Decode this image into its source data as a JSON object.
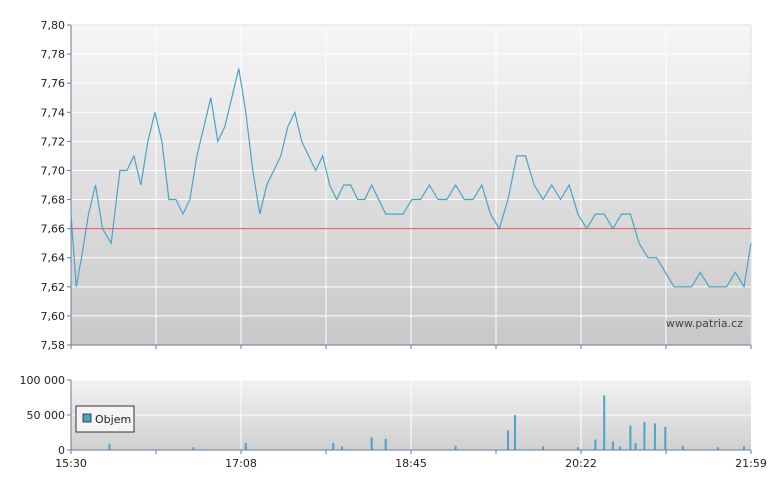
{
  "watermark": "www.patria.cz",
  "chart_data": [
    {
      "type": "line",
      "title": "",
      "xlabel": "",
      "ylabel": "",
      "x_tick_labels": [
        "15:30",
        "17:08",
        "18:45",
        "20:22",
        "21:59"
      ],
      "x_range": [
        "15:30",
        "21:59"
      ],
      "ylim": [
        7.58,
        7.8
      ],
      "y_ticks": [
        "7,58",
        "7,60",
        "7,62",
        "7,64",
        "7,66",
        "7,68",
        "7,70",
        "7,72",
        "7,74",
        "7,76",
        "7,78",
        "7,80"
      ],
      "grid": true,
      "reference_line": 7.66,
      "colors": {
        "line": "#4aa3c8",
        "reference": "#e05050"
      },
      "series": [
        {
          "x": [
            "15:30",
            "15:33",
            "15:36",
            "15:40",
            "15:44",
            "15:48",
            "15:53",
            "15:58",
            "16:02",
            "16:06",
            "16:10",
            "16:14",
            "16:18",
            "16:22",
            "16:26",
            "16:30",
            "16:34",
            "16:38",
            "16:42",
            "16:46",
            "16:50",
            "16:54",
            "16:58",
            "17:02",
            "17:06",
            "17:10",
            "17:14",
            "17:18",
            "17:22",
            "17:26",
            "17:30",
            "17:34",
            "17:38",
            "17:42",
            "17:46",
            "17:50",
            "17:54",
            "17:58",
            "18:02",
            "18:06",
            "18:10",
            "18:14",
            "18:18",
            "18:22",
            "18:26",
            "18:30",
            "18:35",
            "18:40",
            "18:45",
            "18:50",
            "18:55",
            "19:00",
            "19:05",
            "19:10",
            "19:15",
            "19:20",
            "19:25",
            "19:30",
            "19:35",
            "19:40",
            "19:45",
            "19:50",
            "19:55",
            "20:00",
            "20:05",
            "20:10",
            "20:15",
            "20:20",
            "20:25",
            "20:30",
            "20:35",
            "20:40",
            "20:45",
            "20:50",
            "20:55",
            "21:00",
            "21:05",
            "21:10",
            "21:15",
            "21:20",
            "21:25",
            "21:30",
            "21:35",
            "21:40",
            "21:45",
            "21:50",
            "21:55",
            "21:59"
          ],
          "values": [
            7.67,
            7.62,
            7.64,
            7.67,
            7.69,
            7.66,
            7.65,
            7.7,
            7.7,
            7.71,
            7.69,
            7.72,
            7.74,
            7.72,
            7.68,
            7.68,
            7.67,
            7.68,
            7.71,
            7.73,
            7.75,
            7.72,
            7.73,
            7.75,
            7.77,
            7.74,
            7.7,
            7.67,
            7.69,
            7.7,
            7.71,
            7.73,
            7.74,
            7.72,
            7.71,
            7.7,
            7.71,
            7.69,
            7.68,
            7.69,
            7.69,
            7.68,
            7.68,
            7.69,
            7.68,
            7.67,
            7.67,
            7.67,
            7.68,
            7.68,
            7.69,
            7.68,
            7.68,
            7.69,
            7.68,
            7.68,
            7.69,
            7.67,
            7.66,
            7.68,
            7.71,
            7.71,
            7.69,
            7.68,
            7.69,
            7.68,
            7.69,
            7.67,
            7.66,
            7.67,
            7.67,
            7.66,
            7.67,
            7.67,
            7.65,
            7.64,
            7.64,
            7.63,
            7.62,
            7.62,
            7.62,
            7.63,
            7.62,
            7.62,
            7.62,
            7.63,
            7.62,
            7.65
          ]
        }
      ]
    },
    {
      "type": "bar",
      "title": "",
      "xlabel": "",
      "ylabel": "",
      "x_tick_labels": [
        "15:30",
        "17:08",
        "18:45",
        "20:22",
        "21:59"
      ],
      "ylim": [
        0,
        100000
      ],
      "y_ticks": [
        "0",
        "50 000",
        "100 000"
      ],
      "grid": true,
      "legend": {
        "position": "bottom-left",
        "entries": [
          "Objem"
        ]
      },
      "colors": {
        "bars": "#4aa3c8",
        "legend_swatch": "#4aa3c8"
      },
      "series": [
        {
          "name": "Objem",
          "x": [
            "15:52",
            "16:40",
            "17:10",
            "18:00",
            "18:05",
            "18:22",
            "18:30",
            "19:10",
            "19:40",
            "19:44",
            "20:00",
            "20:20",
            "20:30",
            "20:35",
            "20:40",
            "20:44",
            "20:50",
            "20:53",
            "20:58",
            "21:04",
            "21:10",
            "21:20",
            "21:40",
            "21:55"
          ],
          "values": [
            9000,
            4000,
            10000,
            10000,
            5000,
            18000,
            16000,
            6000,
            28000,
            50000,
            5000,
            4000,
            15000,
            78000,
            12000,
            5000,
            35000,
            10000,
            40000,
            38000,
            33000,
            6000,
            4000,
            5000
          ]
        }
      ]
    }
  ]
}
